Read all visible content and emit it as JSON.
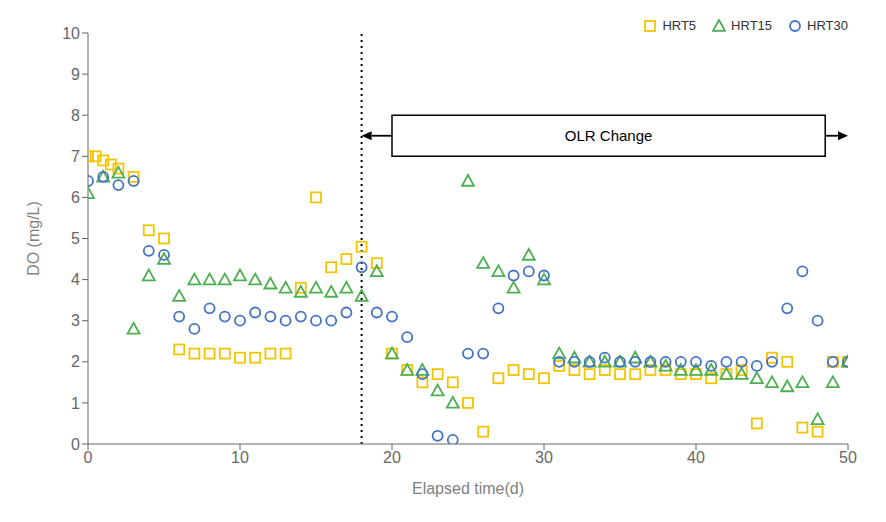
{
  "chart_data": {
    "type": "scatter",
    "title": "",
    "xlabel": "Elapsed time(d)",
    "ylabel": "DO (mg/L)",
    "xlim": [
      0,
      50
    ],
    "ylim": [
      0,
      10
    ],
    "xticks": [
      0,
      10,
      20,
      30,
      40,
      50
    ],
    "yticks": [
      0,
      1,
      2,
      3,
      4,
      5,
      6,
      7,
      8,
      9,
      10
    ],
    "grid": false,
    "legend": "upper right",
    "series": [
      {
        "name": "HRT5",
        "color": "#F5C400",
        "marker": "square",
        "x": [
          0,
          0.5,
          1,
          1.5,
          2,
          3,
          4,
          5,
          6,
          7,
          8,
          9,
          10,
          11,
          12,
          13,
          14,
          15,
          16,
          17,
          18,
          19,
          20,
          21,
          22,
          23,
          24,
          25,
          26,
          27,
          28,
          29,
          30,
          31,
          32,
          33,
          34,
          35,
          36,
          37,
          38,
          39,
          40,
          41,
          42,
          43,
          44,
          45,
          46,
          47,
          48,
          49,
          50
        ],
        "values": [
          7.0,
          7.0,
          6.9,
          6.8,
          6.7,
          6.5,
          5.2,
          5.0,
          2.3,
          2.2,
          2.2,
          2.2,
          2.1,
          2.1,
          2.2,
          2.2,
          3.8,
          6.0,
          4.3,
          4.5,
          4.8,
          4.4,
          2.2,
          1.8,
          1.5,
          1.7,
          1.5,
          1.0,
          0.3,
          1.6,
          1.8,
          1.7,
          1.6,
          1.9,
          1.8,
          1.7,
          1.8,
          1.7,
          1.7,
          1.8,
          1.8,
          1.7,
          1.7,
          1.6,
          1.7,
          1.8,
          0.5,
          2.1,
          2.0,
          0.4,
          0.3,
          2.0,
          2.0
        ]
      },
      {
        "name": "HRT15",
        "color": "#4CAF50",
        "marker": "triangle",
        "x": [
          0,
          1,
          2,
          3,
          4,
          5,
          6,
          7,
          8,
          9,
          10,
          11,
          12,
          13,
          14,
          15,
          16,
          17,
          18,
          19,
          20,
          21,
          22,
          23,
          24,
          25,
          26,
          27,
          28,
          29,
          30,
          31,
          32,
          33,
          34,
          35,
          36,
          37,
          38,
          39,
          40,
          41,
          42,
          43,
          44,
          45,
          46,
          47,
          48,
          49,
          50
        ],
        "values": [
          6.1,
          6.5,
          6.6,
          2.8,
          4.1,
          4.5,
          3.6,
          4.0,
          4.0,
          4.0,
          4.1,
          4.0,
          3.9,
          3.8,
          3.7,
          3.8,
          3.7,
          3.8,
          3.6,
          4.2,
          2.2,
          1.8,
          1.8,
          1.3,
          1.0,
          6.4,
          4.4,
          4.2,
          3.8,
          4.6,
          4.0,
          2.2,
          2.1,
          2.0,
          2.0,
          2.0,
          2.1,
          2.0,
          1.9,
          1.8,
          1.8,
          1.8,
          1.7,
          1.7,
          1.6,
          1.5,
          1.4,
          1.5,
          0.6,
          1.5,
          2.0
        ]
      },
      {
        "name": "HRT30",
        "color": "#4472C4",
        "marker": "circle",
        "x": [
          0,
          1,
          2,
          3,
          4,
          5,
          6,
          7,
          8,
          9,
          10,
          11,
          12,
          13,
          14,
          15,
          16,
          17,
          18,
          19,
          20,
          21,
          22,
          23,
          24,
          25,
          26,
          27,
          28,
          29,
          30,
          31,
          32,
          33,
          34,
          35,
          36,
          37,
          38,
          39,
          40,
          41,
          42,
          43,
          44,
          45,
          46,
          47,
          48,
          49,
          50
        ],
        "values": [
          6.4,
          6.5,
          6.3,
          6.4,
          4.7,
          4.6,
          3.1,
          2.8,
          3.3,
          3.1,
          3.0,
          3.2,
          3.1,
          3.0,
          3.1,
          3.0,
          3.0,
          3.2,
          4.3,
          3.2,
          3.1,
          2.6,
          1.7,
          0.2,
          0.1,
          2.2,
          2.2,
          3.3,
          4.1,
          4.2,
          4.1,
          2.0,
          2.0,
          2.0,
          2.1,
          2.0,
          2.0,
          2.0,
          2.0,
          2.0,
          2.0,
          1.9,
          2.0,
          2.0,
          1.9,
          2.0,
          3.3,
          4.2,
          3.0,
          2.0,
          2.0
        ]
      }
    ],
    "vlines": [
      {
        "x": 18,
        "line_style": "dotted"
      }
    ],
    "annotations": [
      {
        "text": "OLR Change",
        "x": [
          20,
          48.5
        ],
        "y": 7.5,
        "height": 1.0,
        "arrows_to": [
          18,
          50
        ]
      }
    ]
  }
}
